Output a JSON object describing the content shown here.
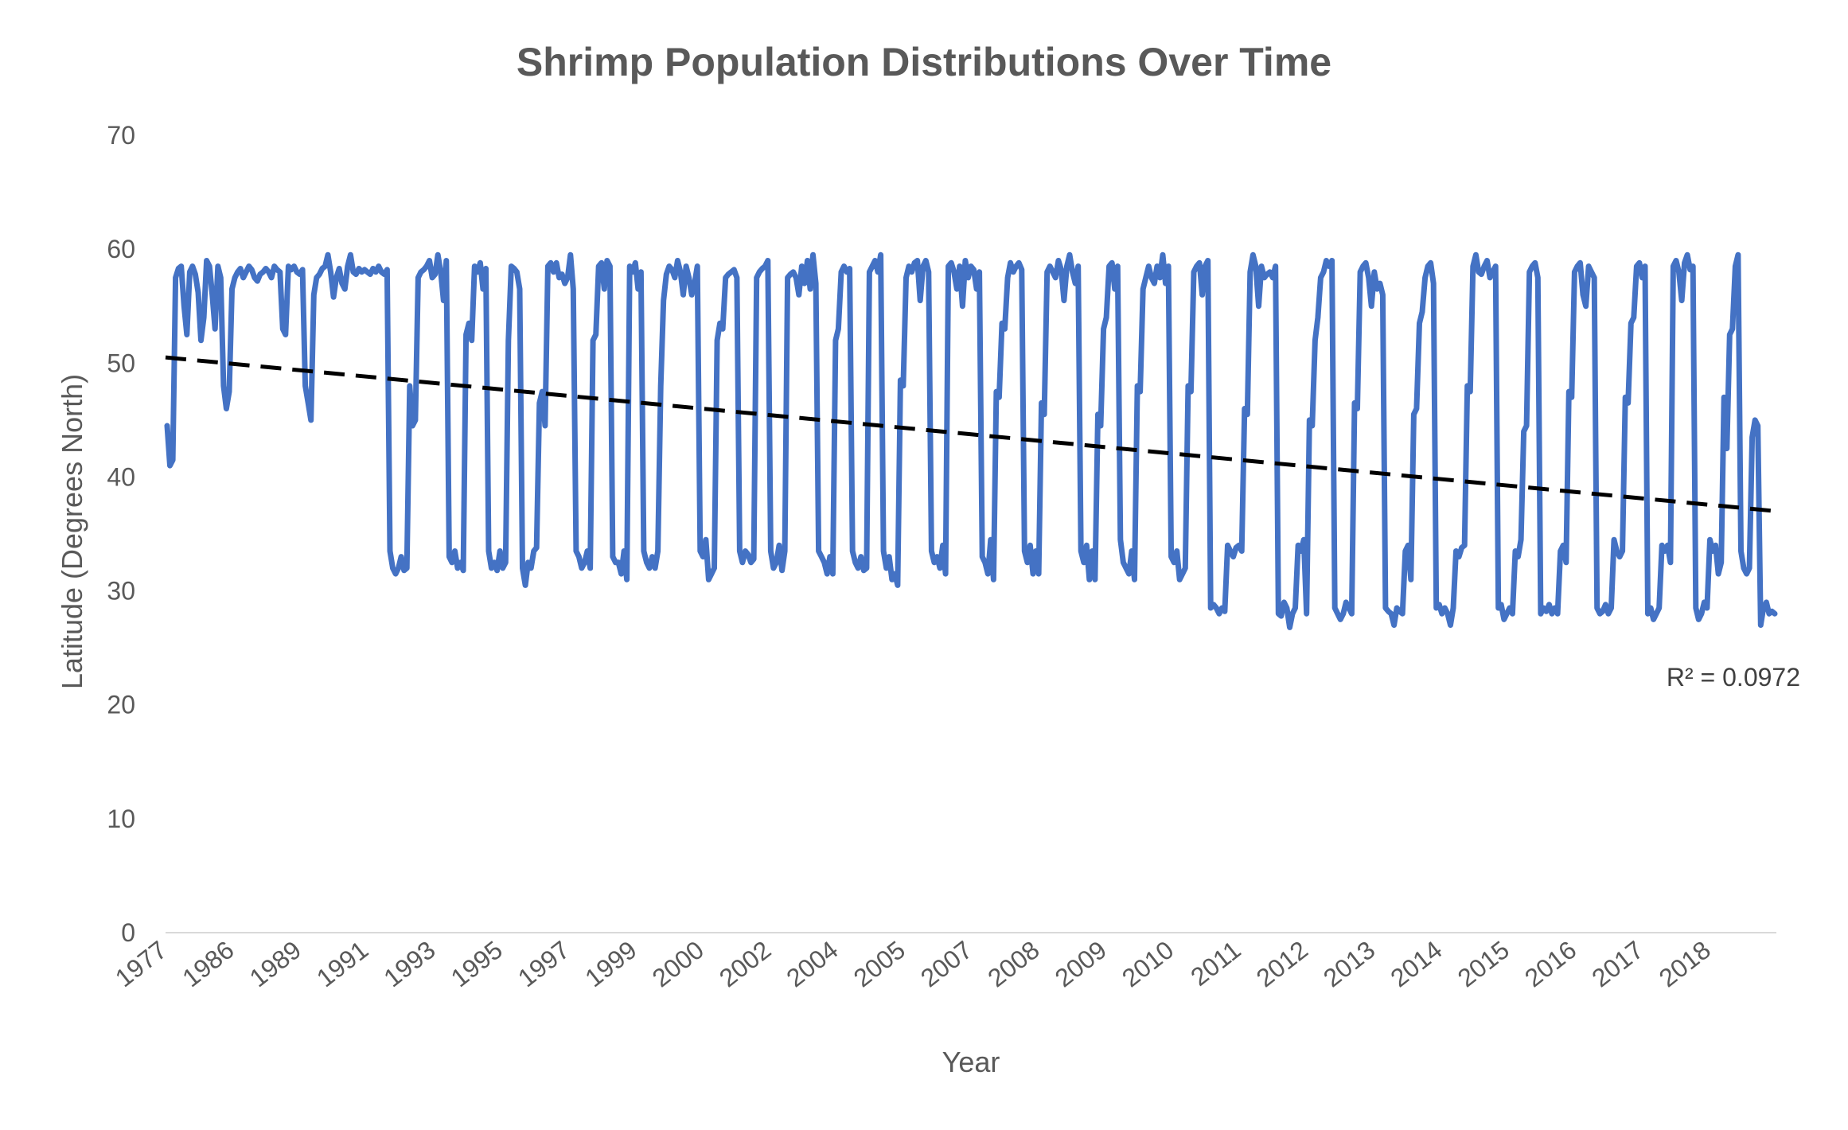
{
  "chart_data": {
    "type": "line",
    "title": "Shrimp Population Distributions Over Time",
    "xlabel": "Year",
    "ylabel": "Latitude (Degrees North)",
    "ylim": [
      0,
      70
    ],
    "yticks": [
      0,
      10,
      20,
      30,
      40,
      50,
      60,
      70
    ],
    "xtick_labels": [
      "1977",
      "1986",
      "1989",
      "1991",
      "1993",
      "1995",
      "1997",
      "1999",
      "2000",
      "2002",
      "2004",
      "2005",
      "2007",
      "2008",
      "2009",
      "2010",
      "2011",
      "2012",
      "2013",
      "2014",
      "2015",
      "2016",
      "2017",
      "2018"
    ],
    "grid": false,
    "legend": "none",
    "series_color": "#4472C4",
    "trendline": {
      "type": "linear",
      "color": "#000000",
      "style": "dashed",
      "start_value": 50.5,
      "end_value": 37.0,
      "r_squared_label": "R² = 0.0972"
    },
    "series": [
      {
        "values": [
          44.5,
          41.0,
          41.5,
          57.5,
          58.3,
          58.5,
          55.0,
          52.5,
          58.0,
          58.5,
          57.8,
          56.2,
          52.0,
          54.0,
          59.0,
          58.5,
          56.0,
          53.0,
          58.5,
          57.5,
          48.0,
          46.0,
          47.5,
          56.5,
          57.5,
          58.0,
          58.3,
          57.5,
          58.0,
          58.5,
          58.2,
          57.5,
          57.2,
          57.8,
          58.0,
          58.3,
          58.0,
          57.5,
          58.5,
          58.2,
          58.0,
          53.0,
          52.5,
          58.5,
          58.2,
          58.5,
          58.0,
          57.8,
          58.2,
          48.0,
          46.5,
          45.0,
          56.0,
          57.5,
          57.8,
          58.3,
          58.5,
          59.5,
          58.0,
          55.8,
          57.5,
          58.3,
          57.0,
          56.5,
          58.5,
          59.5,
          58.0,
          57.8,
          58.3,
          58.0,
          58.2,
          58.0,
          57.8,
          58.3,
          58.0,
          58.5,
          58.0,
          57.8,
          58.2,
          33.5,
          32.0,
          31.5,
          32.0,
          33.0,
          31.8,
          32.0,
          48.0,
          44.5,
          45.0,
          57.5,
          58.0,
          58.2,
          58.5,
          59.0,
          57.5,
          57.8,
          59.5,
          58.0,
          55.5,
          59.0,
          33.0,
          32.5,
          33.5,
          32.0,
          32.5,
          31.8,
          52.5,
          53.5,
          52.0,
          58.5,
          58.0,
          58.8,
          56.5,
          58.3,
          33.5,
          32.0,
          32.5,
          31.8,
          33.5,
          32.0,
          32.5,
          52.0,
          58.5,
          58.3,
          58.0,
          56.5,
          32.0,
          30.5,
          32.5,
          32.0,
          33.5,
          33.8,
          46.5,
          47.5,
          44.5,
          58.5,
          58.8,
          58.0,
          58.8,
          57.5,
          57.8,
          57.0,
          57.5,
          59.5,
          56.5,
          33.5,
          33.0,
          32.0,
          32.5,
          33.5,
          32.0,
          52.0,
          52.5,
          58.5,
          58.8,
          56.5,
          59.0,
          58.5,
          33.0,
          32.5,
          32.5,
          31.5,
          33.5,
          31.0,
          58.5,
          58.0,
          58.8,
          56.5,
          58.0,
          33.5,
          32.5,
          32.0,
          33.0,
          32.0,
          33.5,
          48.0,
          55.5,
          57.8,
          58.5,
          58.2,
          57.5,
          59.0,
          58.0,
          56.0,
          58.5,
          57.5,
          56.0,
          57.0,
          58.5,
          33.5,
          33.0,
          34.5,
          31.0,
          31.5,
          32.0,
          52.0,
          53.5,
          53.0,
          57.5,
          57.8,
          58.0,
          58.2,
          57.5,
          33.5,
          32.5,
          33.5,
          33.2,
          32.5,
          32.8,
          57.5,
          58.0,
          58.3,
          58.5,
          59.0,
          33.5,
          32.0,
          32.5,
          34.0,
          31.8,
          33.5,
          57.5,
          57.8,
          58.0,
          57.5,
          56.0,
          58.5,
          57.0,
          59.0,
          56.5,
          59.5,
          57.0,
          33.5,
          33.0,
          32.5,
          31.5,
          33.0,
          31.5,
          52.0,
          53.0,
          58.0,
          58.5,
          58.0,
          58.3,
          33.5,
          32.5,
          32.0,
          33.0,
          31.8,
          32.0,
          58.0,
          58.5,
          59.0,
          58.0,
          59.5,
          33.5,
          32.0,
          33.0,
          31.0,
          31.5,
          30.5,
          48.5,
          48.0,
          57.5,
          58.5,
          58.0,
          58.8,
          59.0,
          55.5,
          58.5,
          59.0,
          58.0,
          33.5,
          32.5,
          33.0,
          32.0,
          34.0,
          31.5,
          58.5,
          58.8,
          58.0,
          56.5,
          58.5,
          55.0,
          59.0,
          57.5,
          58.5,
          58.2,
          56.5,
          58.0,
          33.0,
          32.5,
          31.5,
          34.5,
          31.0,
          47.5,
          47.0,
          53.5,
          53.0,
          57.5,
          58.8,
          58.0,
          58.5,
          58.8,
          58.2,
          33.5,
          32.5,
          34.0,
          31.5,
          33.5,
          31.5,
          46.5,
          45.5,
          58.0,
          58.5,
          58.0,
          57.5,
          59.0,
          58.2,
          55.5,
          58.5,
          59.5,
          58.0,
          57.0,
          58.5,
          33.5,
          32.5,
          34.0,
          31.0,
          33.5,
          31.0,
          45.5,
          44.5,
          53.0,
          54.0,
          58.5,
          58.8,
          56.5,
          58.5,
          34.5,
          32.5,
          32.0,
          31.5,
          33.5,
          31.0,
          48.0,
          47.5,
          56.5,
          57.5,
          58.5,
          57.5,
          57.0,
          58.5,
          57.5,
          59.5,
          57.0,
          58.5,
          33.0,
          32.5,
          33.5,
          31.0,
          31.5,
          32.0,
          48.0,
          47.5,
          58.0,
          58.5,
          58.8,
          56.0,
          58.5,
          59.0,
          28.5,
          28.8,
          28.5,
          28.0,
          28.5,
          28.2,
          34.0,
          33.5,
          33.0,
          33.8,
          34.0,
          33.5,
          46.0,
          45.5,
          58.0,
          59.5,
          58.5,
          55.0,
          58.5,
          57.5,
          57.8,
          58.0,
          57.5,
          58.5,
          28.0,
          27.8,
          29.0,
          28.5,
          26.8,
          28.0,
          28.5,
          34.0,
          33.5,
          34.5,
          28.0,
          45.0,
          44.5,
          52.0,
          54.0,
          57.5,
          58.0,
          59.0,
          58.5,
          59.0,
          28.5,
          28.0,
          27.5,
          28.0,
          29.0,
          28.5,
          28.0,
          46.5,
          46.0,
          58.0,
          58.5,
          58.8,
          57.5,
          55.0,
          58.0,
          56.5,
          57.0,
          56.0,
          28.5,
          28.2,
          28.0,
          27.0,
          28.5,
          28.2,
          28.0,
          33.5,
          34.0,
          31.0,
          45.5,
          46.0,
          53.5,
          54.5,
          57.5,
          58.5,
          58.8,
          57.0,
          28.5,
          28.8,
          28.0,
          28.5,
          28.0,
          27.0,
          28.5,
          33.5,
          33.0,
          33.8,
          34.0,
          48.0,
          47.5,
          58.5,
          59.5,
          58.0,
          57.8,
          58.5,
          59.0,
          57.5,
          58.0,
          58.5,
          28.5,
          28.8,
          27.5,
          28.0,
          28.5,
          28.0,
          33.5,
          33.0,
          34.5,
          44.0,
          44.5,
          58.0,
          58.5,
          58.8,
          57.5,
          28.0,
          28.5,
          28.2,
          28.8,
          28.0,
          28.5,
          28.0,
          33.5,
          34.0,
          32.5,
          47.5,
          47.0,
          58.0,
          58.5,
          58.8,
          56.0,
          55.0,
          58.5,
          58.0,
          57.5,
          28.5,
          28.0,
          28.2,
          28.8,
          28.0,
          28.5,
          34.5,
          33.5,
          33.0,
          33.5,
          47.0,
          46.5,
          53.5,
          54.0,
          58.5,
          58.8,
          57.5,
          58.5,
          28.0,
          28.5,
          27.5,
          28.0,
          28.5,
          34.0,
          33.5,
          34.0,
          32.5,
          58.5,
          59.0,
          58.0,
          55.5,
          58.8,
          59.5,
          58.2,
          58.5,
          28.5,
          27.5,
          28.0,
          29.0,
          28.5,
          34.5,
          33.5,
          34.0,
          31.5,
          32.5,
          47.0,
          42.5,
          52.5,
          53.0,
          58.5,
          59.5,
          33.5,
          32.0,
          31.5,
          32.0,
          43.5,
          45.0,
          44.5,
          27.0,
          28.5,
          29.0,
          28.0,
          28.2,
          28.0
        ]
      }
    ]
  }
}
